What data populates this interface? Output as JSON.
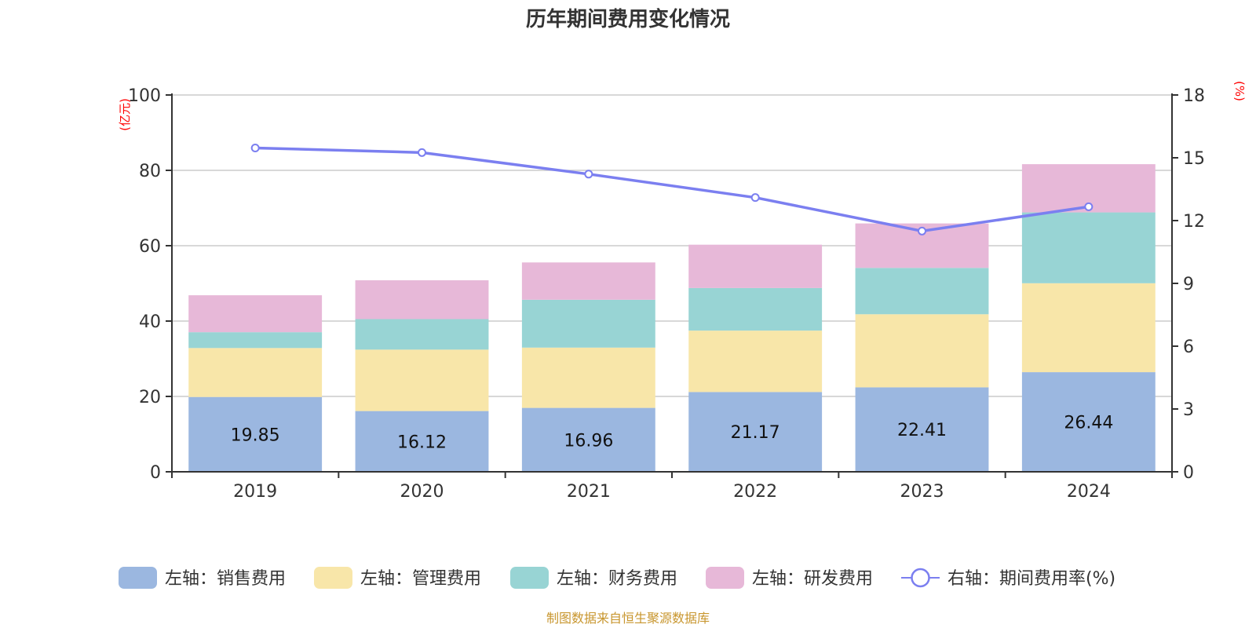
{
  "chart_data": {
    "type": "bar",
    "stacked": true,
    "title": "历年期间费用变化情况",
    "categories": [
      "2019",
      "2020",
      "2021",
      "2022",
      "2023",
      "2024"
    ],
    "left_axis": {
      "unit_label": "(亿元)",
      "ylim": [
        0,
        100
      ],
      "ticks": [
        0,
        20,
        40,
        60,
        80,
        100
      ],
      "tick_labels": [
        "0",
        "20",
        "40",
        "60",
        "80",
        "100"
      ]
    },
    "right_axis": {
      "unit_label": "(%)",
      "ylim": [
        0,
        18
      ],
      "ticks": [
        0,
        3,
        6,
        9,
        12,
        15,
        18
      ],
      "tick_labels": [
        "0",
        "3",
        "6",
        "9",
        "12",
        "15",
        "18"
      ]
    },
    "grid": true,
    "series": [
      {
        "name": "左轴：销售费用",
        "type": "bar",
        "axis": "left",
        "color": "#9bb7e0",
        "values": [
          19.85,
          16.12,
          16.96,
          21.17,
          22.41,
          26.44
        ],
        "labels": [
          "19.85",
          "16.12",
          "16.96",
          "21.17",
          "22.41",
          "26.44"
        ]
      },
      {
        "name": "左轴：管理费用",
        "type": "bar",
        "axis": "left",
        "color": "#f8e6a9",
        "values": [
          13.0,
          16.3,
          16.0,
          16.3,
          19.4,
          23.6
        ]
      },
      {
        "name": "左轴：财务费用",
        "type": "bar",
        "axis": "left",
        "color": "#98d4d4",
        "values": [
          4.2,
          8.1,
          12.7,
          11.3,
          12.3,
          18.8
        ]
      },
      {
        "name": "左轴：研发费用",
        "type": "bar",
        "axis": "left",
        "color": "#e7b8d8",
        "values": [
          9.8,
          10.3,
          9.9,
          11.5,
          11.8,
          12.8
        ]
      },
      {
        "name": "右轴：期间费用率(%)",
        "type": "line",
        "axis": "right",
        "color": "#7b7ff0",
        "values": [
          15.47,
          15.25,
          14.22,
          13.1,
          11.5,
          12.66
        ]
      }
    ],
    "legend_position": "bottom"
  },
  "source": "制图数据来自恒生聚源数据库"
}
